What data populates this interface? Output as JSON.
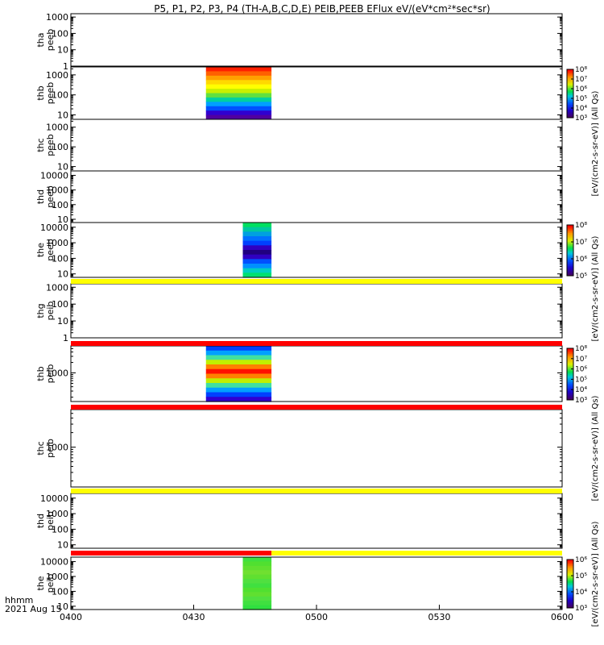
{
  "chart_data": {
    "type": "heatmap",
    "title": "P5, P1, P2, P3, P4 (TH-A,B,C,D,E) PEIB,PEEB EFlux eV/(eV*cm²*sec*sr)",
    "x_ticks": [
      "0400",
      "0430",
      "0500",
      "0530",
      "0600"
    ],
    "x_tick_minutes": [
      0,
      30,
      60,
      90,
      120
    ],
    "x_range_minutes": [
      0,
      120
    ],
    "x_time_range": [
      "04:00",
      "06:00"
    ],
    "footer_units": "hhmm",
    "footer_date": "2021 Aug 15",
    "panels": [
      {
        "probe": "tha",
        "product": "peeb",
        "yticks": [
          "1000",
          "100",
          "10",
          "1"
        ],
        "ytick_values": [
          1000,
          100,
          10,
          1
        ],
        "yrange": [
          1,
          1600
        ],
        "log": true,
        "blocks": []
      },
      {
        "probe": "thb",
        "product": "peeb",
        "yticks": [
          "1000",
          "100",
          "10"
        ],
        "ytick_values": [
          1000,
          100,
          10
        ],
        "yrange": [
          6,
          2500
        ],
        "log": true,
        "blocks": [
          {
            "t0": 33,
            "t1": 49,
            "rows": [
              "#ff2000",
              "#ff6000",
              "#ffa000",
              "#ffd800",
              "#ffff00",
              "#c8f000",
              "#60e040",
              "#00d0a0",
              "#00a0ff",
              "#0050ff",
              "#3000d0",
              "#5000a0"
            ]
          }
        ]
      },
      {
        "probe": "thc",
        "product": "peeb",
        "yticks": [
          "1000",
          "100",
          "10"
        ],
        "ytick_values": [
          1000,
          100,
          10
        ],
        "yrange": [
          6,
          2500
        ],
        "log": true,
        "blocks": []
      },
      {
        "probe": "thd",
        "product": "peeb",
        "yticks": [
          "10000",
          "1000",
          "100",
          "10"
        ],
        "ytick_values": [
          10000,
          1000,
          100,
          10
        ],
        "yrange": [
          6,
          20000
        ],
        "log": true,
        "blocks": []
      },
      {
        "probe": "the",
        "product": "peeb",
        "yticks": [
          "10000",
          "1000",
          "100",
          "10"
        ],
        "ytick_values": [
          10000,
          1000,
          100,
          10
        ],
        "yrange": [
          6,
          20000
        ],
        "log": true,
        "blocks": [
          {
            "t0": 42,
            "t1": 49,
            "rows": [
              "#00e060",
              "#00c8a0",
              "#00a0e0",
              "#0070ff",
              "#0040ff",
              "#3000c0",
              "#200080",
              "#3000c0",
              "#0050ff",
              "#0090ff",
              "#00d0c0",
              "#00e070"
            ]
          }
        ]
      },
      {
        "probe": "thg",
        "product": "peib",
        "yticks": [
          "1000",
          "100",
          "10",
          "1"
        ],
        "ytick_values": [
          1000,
          100,
          10,
          1
        ],
        "yrange": [
          1,
          1600
        ],
        "log": true,
        "blocks": []
      },
      {
        "probe": "thb",
        "product": "peib",
        "yticks": [
          "1000"
        ],
        "ytick_values": [
          1000
        ],
        "yrange": [
          150,
          6000
        ],
        "log": true,
        "blocks": [
          {
            "t0": 33,
            "t1": 49,
            "rows": [
              "#0040ff",
              "#00a0ff",
              "#40e0a0",
              "#c0f000",
              "#ff8000",
              "#ff1000",
              "#ff8000",
              "#c0f000",
              "#40e0a0",
              "#00a0ff",
              "#0040ff",
              "#3000d0"
            ]
          }
        ]
      },
      {
        "probe": "thc",
        "product": "peib",
        "yticks": [
          "1000"
        ],
        "ytick_values": [
          1000
        ],
        "yrange": [
          150,
          6000
        ],
        "log": true,
        "blocks": []
      },
      {
        "probe": "thd",
        "product": "peib",
        "yticks": [
          "10000",
          "1000",
          "100",
          "10"
        ],
        "ytick_values": [
          10000,
          1000,
          100,
          10
        ],
        "yrange": [
          6,
          20000
        ],
        "log": true,
        "blocks": []
      },
      {
        "probe": "the",
        "product": "peib",
        "yticks": [
          "10000",
          "1000",
          "100",
          "10"
        ],
        "ytick_values": [
          10000,
          1000,
          100,
          10
        ],
        "yrange": [
          6,
          20000
        ],
        "log": true,
        "blocks": [
          {
            "t0": 42,
            "t1": 49,
            "rows": [
              "#40e040",
              "#50e030",
              "#60e030",
              "#70e030",
              "#60e030",
              "#50e040",
              "#40e040",
              "#50e030",
              "#60e030",
              "#50e040",
              "#40e040",
              "#30e040"
            ]
          }
        ]
      }
    ],
    "colorbars": [
      {
        "label": "[eV/(cm2-s-sr-eV)] (All Qs)",
        "ticks": [
          "10⁸",
          "10⁷",
          "10⁶",
          "10⁵",
          "10⁴",
          "10³"
        ],
        "tick_values": [
          100000000,
          10000000,
          1000000,
          100000,
          10000,
          1000
        ],
        "range": [
          1000,
          100000000
        ],
        "log": true
      },
      {
        "label": "[eV/(cm2-s-sr-eV)] (All Qs)",
        "ticks": [
          "10⁸",
          "10⁷",
          "10⁶",
          "10⁵"
        ],
        "tick_values": [
          100000000,
          10000000,
          1000000,
          100000
        ],
        "range": [
          100000,
          100000000
        ],
        "log": true
      },
      {
        "label": "[eV/(cm2-s-sr-eV)] (All Qs)",
        "ticks": [
          "10⁸",
          "10⁷",
          "10⁶",
          "10⁵",
          "10⁴",
          "10³"
        ],
        "tick_values": [
          100000000,
          10000000,
          1000000,
          100000,
          10000,
          1000
        ],
        "range": [
          1000,
          100000000
        ],
        "log": true
      },
      {
        "label": "[eV/(cm2-s-sr-eV)] (All Qs)",
        "ticks": [
          "10⁶",
          "10⁵",
          "10⁴",
          "10³"
        ],
        "tick_values": [
          1000000,
          100000,
          10000,
          1000
        ],
        "range": [
          1000,
          1000000
        ],
        "log": true
      }
    ],
    "flag_bars": [
      {
        "after_panel": 4,
        "segments": [
          {
            "t0": 0,
            "t1": 120,
            "color": "#ffff00"
          }
        ]
      },
      {
        "after_panel": 5,
        "segments": [
          {
            "t0": 0,
            "t1": 120,
            "color": "#ff0000"
          }
        ]
      },
      {
        "after_panel": 6,
        "segments": [
          {
            "t0": 0,
            "t1": 120,
            "color": "#ff0000"
          }
        ]
      },
      {
        "after_panel": 7,
        "segments": [
          {
            "t0": 0,
            "t1": 120,
            "color": "#ffff00"
          }
        ]
      },
      {
        "after_panel": 8,
        "segments": [
          {
            "t0": 0,
            "t1": 49,
            "color": "#ff0000"
          },
          {
            "t0": 49,
            "t1": 120,
            "color": "#ffff00"
          }
        ]
      }
    ],
    "grid": false,
    "legend": "right"
  }
}
